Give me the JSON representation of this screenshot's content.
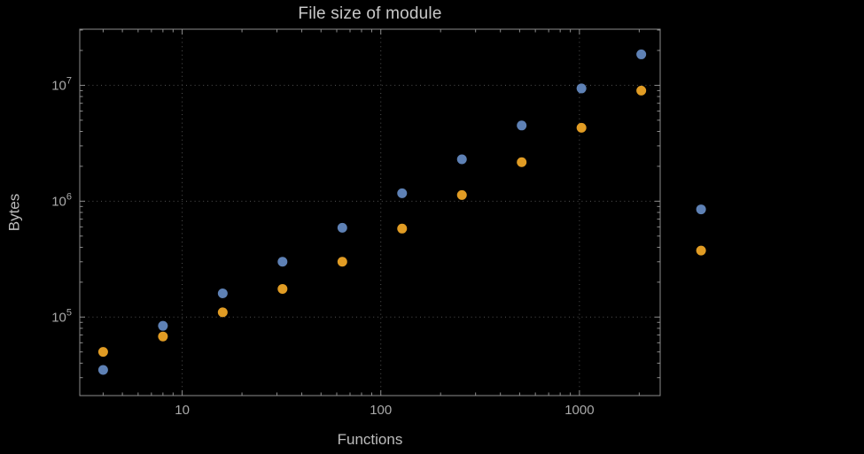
{
  "colors": {
    "background": "#000000",
    "frame": "#8d8d8d",
    "grid": "#525252",
    "title_text": "#c8c8c8",
    "axis_label_text": "#bdbdbd",
    "tick_label_text": "#a9a9a9",
    "series_blue": "#5e81b5",
    "series_orange": "#e19c24"
  },
  "chart_data": {
    "type": "scatter",
    "title": "File size of module",
    "xlabel": "Functions",
    "ylabel": "Bytes",
    "x_scale": "log",
    "y_scale": "log",
    "x_range": [
      3.05,
      2550
    ],
    "y_range": [
      21000,
      30500000
    ],
    "x_ticks": [
      10,
      100,
      1000
    ],
    "x_tick_labels": [
      "10",
      "100",
      "1000"
    ],
    "y_ticks": [
      100000,
      1000000,
      10000000
    ],
    "y_tick_labels": [
      {
        "base": "10",
        "exp": "5"
      },
      {
        "base": "10",
        "exp": "6"
      },
      {
        "base": "10",
        "exp": "7"
      }
    ],
    "grid": "dotted gridlines at major ticks only",
    "legend": "none",
    "series": [
      {
        "name": "blue-series",
        "color": "#5e81b5",
        "points": [
          [
            4,
            35000
          ],
          [
            8,
            84000
          ],
          [
            16,
            160000
          ],
          [
            32,
            300000
          ],
          [
            64,
            590000
          ],
          [
            128,
            1170000
          ],
          [
            256,
            2300000
          ],
          [
            512,
            4500000
          ],
          [
            1024,
            9400000
          ],
          [
            2048,
            18500000
          ],
          [
            4096,
            850000
          ]
        ]
      },
      {
        "name": "orange-series",
        "color": "#e19c24",
        "points": [
          [
            4,
            50000
          ],
          [
            8,
            68000
          ],
          [
            16,
            110000
          ],
          [
            32,
            175000
          ],
          [
            64,
            300000
          ],
          [
            128,
            580000
          ],
          [
            256,
            1130000
          ],
          [
            512,
            2170000
          ],
          [
            1024,
            4300000
          ],
          [
            2048,
            9000000
          ],
          [
            4096,
            375000
          ]
        ]
      }
    ]
  }
}
